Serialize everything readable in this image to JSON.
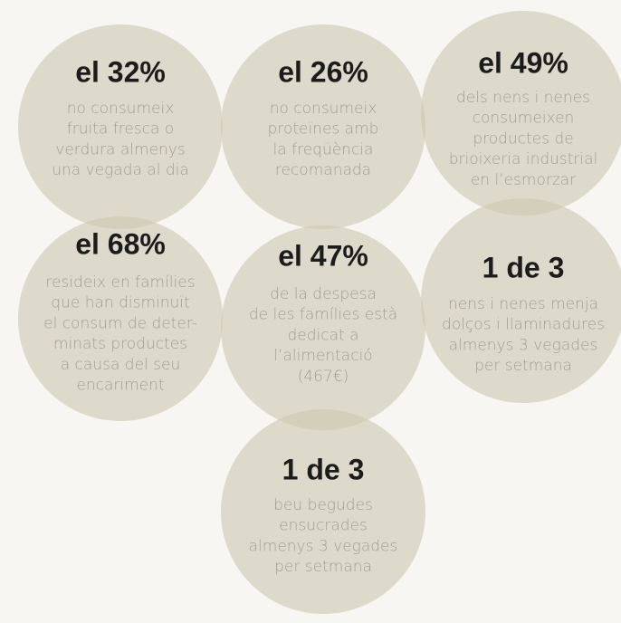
{
  "items": [
    {
      "headline": "el 32%",
      "lines": [
        "no consumeix",
        "fruita fresca o",
        "verdura almenys",
        "una vegada al dia"
      ]
    },
    {
      "headline": "el 26%",
      "lines": [
        "no consumeix",
        "proteïnes amb",
        "la freqüència",
        "recomanada"
      ]
    },
    {
      "headline": "el 49%",
      "lines": [
        "dels nens i nenes",
        "consumeixen",
        "productes de",
        "brioixeria industrial",
        "en l’esmorzar"
      ]
    },
    {
      "headline": "el 68%",
      "lines": [
        "resideix en famílies",
        "que han disminuït",
        "el consum de deter-",
        "minats productes",
        "a causa del seu",
        "encariment"
      ]
    },
    {
      "headline": "el 47%",
      "lines": [
        "de la despesa",
        "de les famílies està",
        "dedicat a",
        "l’alimentació",
        "(467€)"
      ]
    },
    {
      "headline": "1 de 3",
      "lines": [
        "nens i nenes menja",
        "dolços i llaminadures",
        "almenys 3 vegades",
        "per setmana"
      ]
    },
    {
      "headline": "1 de 3",
      "lines": [
        "beu begudes",
        "ensucrades",
        "almenys 3 vegades",
        "per setmana"
      ]
    }
  ]
}
